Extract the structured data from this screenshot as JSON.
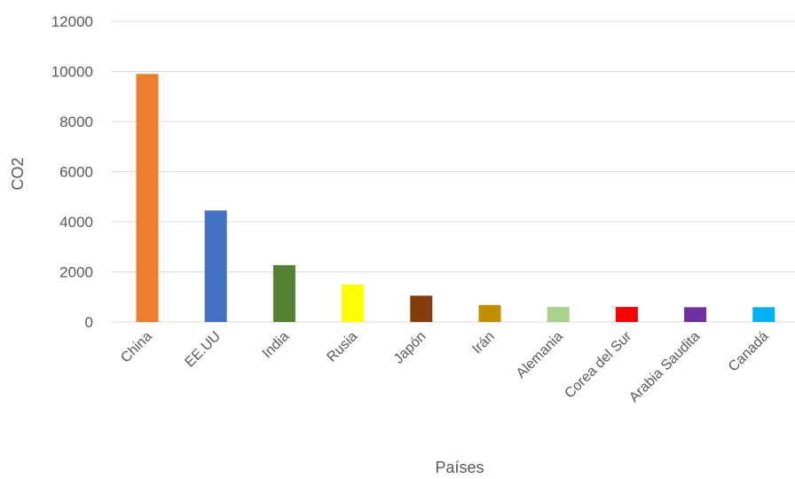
{
  "chart_data": {
    "type": "bar",
    "categories": [
      "China",
      "EE.UU",
      "India",
      "Rusia",
      "Japón",
      "Irán",
      "Alemania",
      "Corea del Sur",
      "Arabia Saudita",
      "Canadá"
    ],
    "values": [
      9900,
      4450,
      2270,
      1500,
      1050,
      680,
      600,
      600,
      590,
      590
    ],
    "colors": [
      "#ed7d31",
      "#4472c4",
      "#548235",
      "#ffff00",
      "#843c0c",
      "#bf9000",
      "#a9d18e",
      "#ff0000",
      "#7030a0",
      "#00b0f0"
    ],
    "ylim": [
      0,
      12000
    ],
    "yticks": [
      "0",
      "2000",
      "4000",
      "6000",
      "8000",
      "10000",
      "12000"
    ],
    "xlabel": "Países",
    "ylabel": "CO2",
    "grid": true,
    "legend": "none"
  }
}
